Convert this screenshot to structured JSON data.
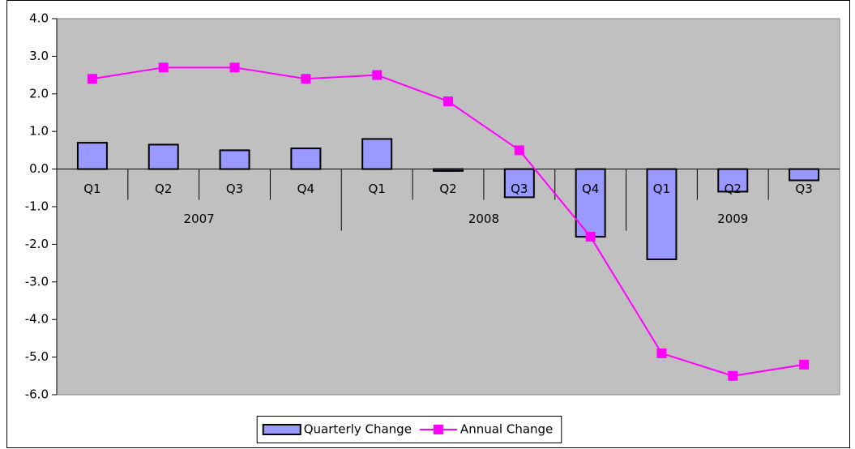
{
  "chart_data": {
    "type": "bar_line",
    "category_groups": [
      {
        "label": "2007",
        "categories": [
          "Q1",
          "Q2",
          "Q3",
          "Q4"
        ]
      },
      {
        "label": "2008",
        "categories": [
          "Q1",
          "Q2",
          "Q3",
          "Q4"
        ]
      },
      {
        "label": "2009",
        "categories": [
          "Q1",
          "Q2",
          "Q3"
        ]
      }
    ],
    "series": [
      {
        "name": "Quarterly Change",
        "type": "bar",
        "color": "#9999ff",
        "values": [
          0.7,
          0.65,
          0.5,
          0.55,
          0.8,
          -0.05,
          -0.75,
          -1.8,
          -2.4,
          -0.6,
          -0.3
        ]
      },
      {
        "name": "Annual Change",
        "type": "line",
        "color": "#ff00ff",
        "values": [
          2.4,
          2.7,
          2.7,
          2.4,
          2.5,
          1.8,
          0.5,
          -1.8,
          -4.9,
          -5.5,
          -5.2
        ]
      }
    ],
    "ylim": [
      -6,
      4
    ],
    "yticks": [
      {
        "value": -6,
        "label": "-6.0"
      },
      {
        "value": -5,
        "label": "-5.0"
      },
      {
        "value": -4,
        "label": "-4.0"
      },
      {
        "value": -3,
        "label": "-3.0"
      },
      {
        "value": -2,
        "label": "-2.0"
      },
      {
        "value": -1,
        "label": "-1.0"
      },
      {
        "value": 0,
        "label": "0.0"
      },
      {
        "value": 1,
        "label": "1.0"
      },
      {
        "value": 2,
        "label": "2.0"
      },
      {
        "value": 3,
        "label": "3.0"
      },
      {
        "value": 4,
        "label": "4.0"
      }
    ],
    "plot_background": "#c0c0c0",
    "grid": false,
    "legend": "bottom"
  }
}
